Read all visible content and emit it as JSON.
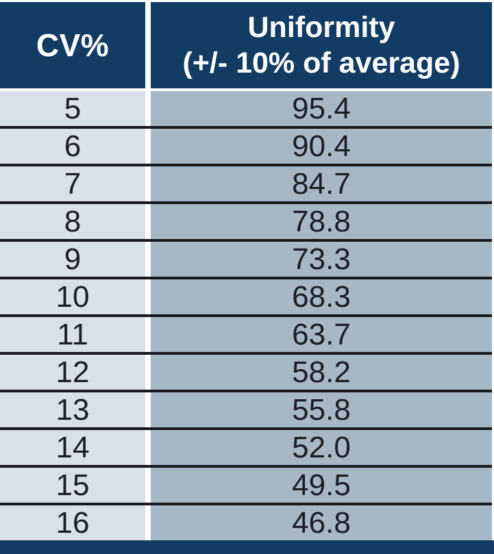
{
  "table": {
    "columns": [
      {
        "label": "CV%"
      },
      {
        "label": "Uniformity",
        "sublabel": "(+/- 10% of average)"
      }
    ],
    "rows": [
      {
        "cv": "5",
        "uniformity": "95.4"
      },
      {
        "cv": "6",
        "uniformity": "90.4"
      },
      {
        "cv": "7",
        "uniformity": "84.7"
      },
      {
        "cv": "8",
        "uniformity": "78.8"
      },
      {
        "cv": "9",
        "uniformity": "73.3"
      },
      {
        "cv": "10",
        "uniformity": "68.3"
      },
      {
        "cv": "11",
        "uniformity": "63.7"
      },
      {
        "cv": "12",
        "uniformity": "58.2"
      },
      {
        "cv": "13",
        "uniformity": "55.8"
      },
      {
        "cv": "14",
        "uniformity": "52.0"
      },
      {
        "cv": "15",
        "uniformity": "49.5"
      },
      {
        "cv": "16",
        "uniformity": "46.8"
      }
    ]
  },
  "colors": {
    "header_bg": "#123c64",
    "left_column_bg": "#dae0e8",
    "right_column_bg": "#a6b7c6",
    "separator_line": "#16191f",
    "header_text": "#ffffff",
    "body_text": "#1b1e23"
  },
  "chart_data": {
    "type": "table",
    "title": "",
    "columns": [
      "CV%",
      "Uniformity (+/- 10% of average)"
    ],
    "cv_percent": [
      5,
      6,
      7,
      8,
      9,
      10,
      11,
      12,
      13,
      14,
      15,
      16
    ],
    "uniformity": [
      95.4,
      90.4,
      84.7,
      78.8,
      73.3,
      68.3,
      63.7,
      58.2,
      55.8,
      52.0,
      49.5,
      46.8
    ]
  }
}
